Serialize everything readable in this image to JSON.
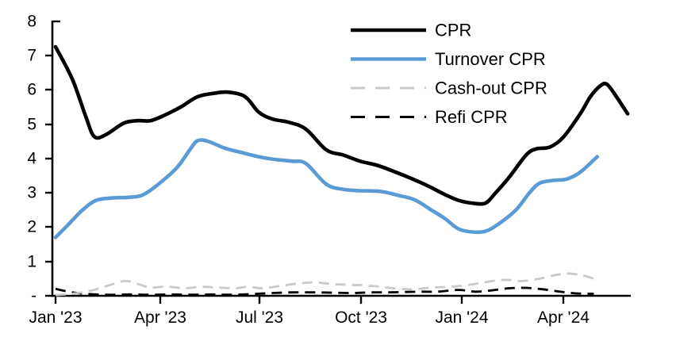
{
  "chart_data": {
    "type": "line",
    "title": "",
    "grid": "off",
    "legend_position": "top-right",
    "x_axis": {
      "unit": "months since Jan 2023",
      "tick_labels": [
        "Jan '23",
        "Apr '23",
        "Jul '23",
        "Oct '23",
        "Jan '24",
        "Apr '24"
      ],
      "tick_positions_months": [
        0,
        3,
        6,
        9,
        12,
        15
      ],
      "range_months": [
        0,
        17
      ]
    },
    "y_axis": {
      "tick_labels": [
        "8",
        "7",
        "6",
        "5",
        "4",
        "3",
        "2",
        "1",
        "-"
      ],
      "tick_values": [
        8,
        7,
        6,
        5,
        4,
        3,
        2,
        1,
        0
      ],
      "min": 0,
      "max": 8,
      "zero_rendered_as": "-"
    },
    "series": [
      {
        "name": "CPR",
        "color": "#000000",
        "style": "solid",
        "width": 4.6,
        "points": [
          [
            0,
            7.25
          ],
          [
            0.5,
            6.3
          ],
          [
            0.9,
            5.2
          ],
          [
            1.15,
            4.63
          ],
          [
            1.5,
            4.7
          ],
          [
            2.0,
            5.02
          ],
          [
            2.4,
            5.1
          ],
          [
            2.8,
            5.1
          ],
          [
            3.2,
            5.25
          ],
          [
            3.7,
            5.5
          ],
          [
            4.2,
            5.8
          ],
          [
            4.7,
            5.9
          ],
          [
            5.1,
            5.93
          ],
          [
            5.6,
            5.8
          ],
          [
            6.0,
            5.35
          ],
          [
            6.4,
            5.15
          ],
          [
            6.9,
            5.05
          ],
          [
            7.4,
            4.85
          ],
          [
            8.0,
            4.25
          ],
          [
            8.5,
            4.1
          ],
          [
            9.0,
            3.92
          ],
          [
            9.5,
            3.8
          ],
          [
            10.0,
            3.62
          ],
          [
            10.5,
            3.42
          ],
          [
            11.0,
            3.2
          ],
          [
            11.5,
            2.95
          ],
          [
            11.9,
            2.78
          ],
          [
            12.3,
            2.7
          ],
          [
            12.7,
            2.7
          ],
          [
            13.0,
            3.0
          ],
          [
            13.4,
            3.45
          ],
          [
            13.9,
            4.1
          ],
          [
            14.2,
            4.28
          ],
          [
            14.6,
            4.33
          ],
          [
            15.0,
            4.62
          ],
          [
            15.5,
            5.3
          ],
          [
            15.8,
            5.8
          ],
          [
            16.1,
            6.12
          ],
          [
            16.3,
            6.15
          ],
          [
            16.6,
            5.75
          ],
          [
            16.9,
            5.3
          ]
        ]
      },
      {
        "name": "Turnover CPR",
        "color": "#5B9BD5",
        "style": "solid",
        "width": 4.6,
        "points": [
          [
            0,
            1.7
          ],
          [
            0.4,
            2.1
          ],
          [
            0.8,
            2.5
          ],
          [
            1.2,
            2.78
          ],
          [
            1.7,
            2.85
          ],
          [
            2.2,
            2.87
          ],
          [
            2.6,
            2.95
          ],
          [
            3.1,
            3.3
          ],
          [
            3.6,
            3.75
          ],
          [
            4.0,
            4.3
          ],
          [
            4.2,
            4.52
          ],
          [
            4.5,
            4.5
          ],
          [
            5.0,
            4.3
          ],
          [
            5.5,
            4.17
          ],
          [
            6.0,
            4.05
          ],
          [
            6.5,
            3.97
          ],
          [
            7.0,
            3.92
          ],
          [
            7.4,
            3.85
          ],
          [
            8.0,
            3.25
          ],
          [
            8.5,
            3.1
          ],
          [
            9.0,
            3.06
          ],
          [
            9.6,
            3.04
          ],
          [
            10.1,
            2.93
          ],
          [
            10.6,
            2.8
          ],
          [
            11.1,
            2.5
          ],
          [
            11.5,
            2.25
          ],
          [
            11.9,
            1.95
          ],
          [
            12.3,
            1.86
          ],
          [
            12.7,
            1.88
          ],
          [
            13.1,
            2.1
          ],
          [
            13.6,
            2.5
          ],
          [
            14.0,
            3.0
          ],
          [
            14.3,
            3.28
          ],
          [
            14.7,
            3.36
          ],
          [
            15.1,
            3.4
          ],
          [
            15.5,
            3.6
          ],
          [
            16.0,
            4.05
          ]
        ]
      },
      {
        "name": "Cash-out CPR",
        "color": "#C9C9C9",
        "style": "dashed",
        "width": 2.8,
        "points": [
          [
            0,
            0.02
          ],
          [
            0.5,
            0.06
          ],
          [
            1.0,
            0.14
          ],
          [
            1.5,
            0.28
          ],
          [
            2.05,
            0.43
          ],
          [
            2.5,
            0.32
          ],
          [
            2.8,
            0.24
          ],
          [
            3.3,
            0.27
          ],
          [
            3.8,
            0.22
          ],
          [
            4.3,
            0.26
          ],
          [
            4.8,
            0.24
          ],
          [
            5.3,
            0.22
          ],
          [
            5.7,
            0.26
          ],
          [
            6.1,
            0.22
          ],
          [
            6.6,
            0.28
          ],
          [
            7.1,
            0.35
          ],
          [
            7.65,
            0.39
          ],
          [
            8.2,
            0.34
          ],
          [
            8.7,
            0.32
          ],
          [
            9.2,
            0.3
          ],
          [
            9.7,
            0.25
          ],
          [
            10.2,
            0.2
          ],
          [
            10.6,
            0.19
          ],
          [
            11.1,
            0.24
          ],
          [
            11.6,
            0.26
          ],
          [
            12.1,
            0.3
          ],
          [
            12.6,
            0.38
          ],
          [
            13.05,
            0.45
          ],
          [
            13.45,
            0.46
          ],
          [
            13.8,
            0.43
          ],
          [
            14.3,
            0.5
          ],
          [
            14.75,
            0.6
          ],
          [
            15.1,
            0.65
          ],
          [
            15.5,
            0.61
          ],
          [
            15.9,
            0.5
          ]
        ]
      },
      {
        "name": "Refi CPR",
        "color": "#000000",
        "style": "dashed",
        "width": 2.8,
        "points": [
          [
            0,
            0.2
          ],
          [
            0.5,
            0.1
          ],
          [
            1.0,
            0.05
          ],
          [
            1.6,
            0.03
          ],
          [
            2.2,
            0.04
          ],
          [
            2.8,
            0.03
          ],
          [
            3.4,
            0.04
          ],
          [
            4.0,
            0.03
          ],
          [
            4.6,
            0.04
          ],
          [
            5.2,
            0.03
          ],
          [
            5.8,
            0.05
          ],
          [
            6.4,
            0.08
          ],
          [
            7.0,
            0.1
          ],
          [
            7.6,
            0.1
          ],
          [
            8.2,
            0.09
          ],
          [
            8.8,
            0.08
          ],
          [
            9.3,
            0.1
          ],
          [
            9.8,
            0.1
          ],
          [
            10.3,
            0.11
          ],
          [
            10.8,
            0.12
          ],
          [
            11.3,
            0.12
          ],
          [
            11.9,
            0.17
          ],
          [
            12.4,
            0.12
          ],
          [
            12.9,
            0.16
          ],
          [
            13.4,
            0.22
          ],
          [
            13.9,
            0.23
          ],
          [
            14.4,
            0.19
          ],
          [
            14.9,
            0.12
          ],
          [
            15.4,
            0.07
          ],
          [
            15.9,
            0.06
          ]
        ]
      }
    ]
  }
}
